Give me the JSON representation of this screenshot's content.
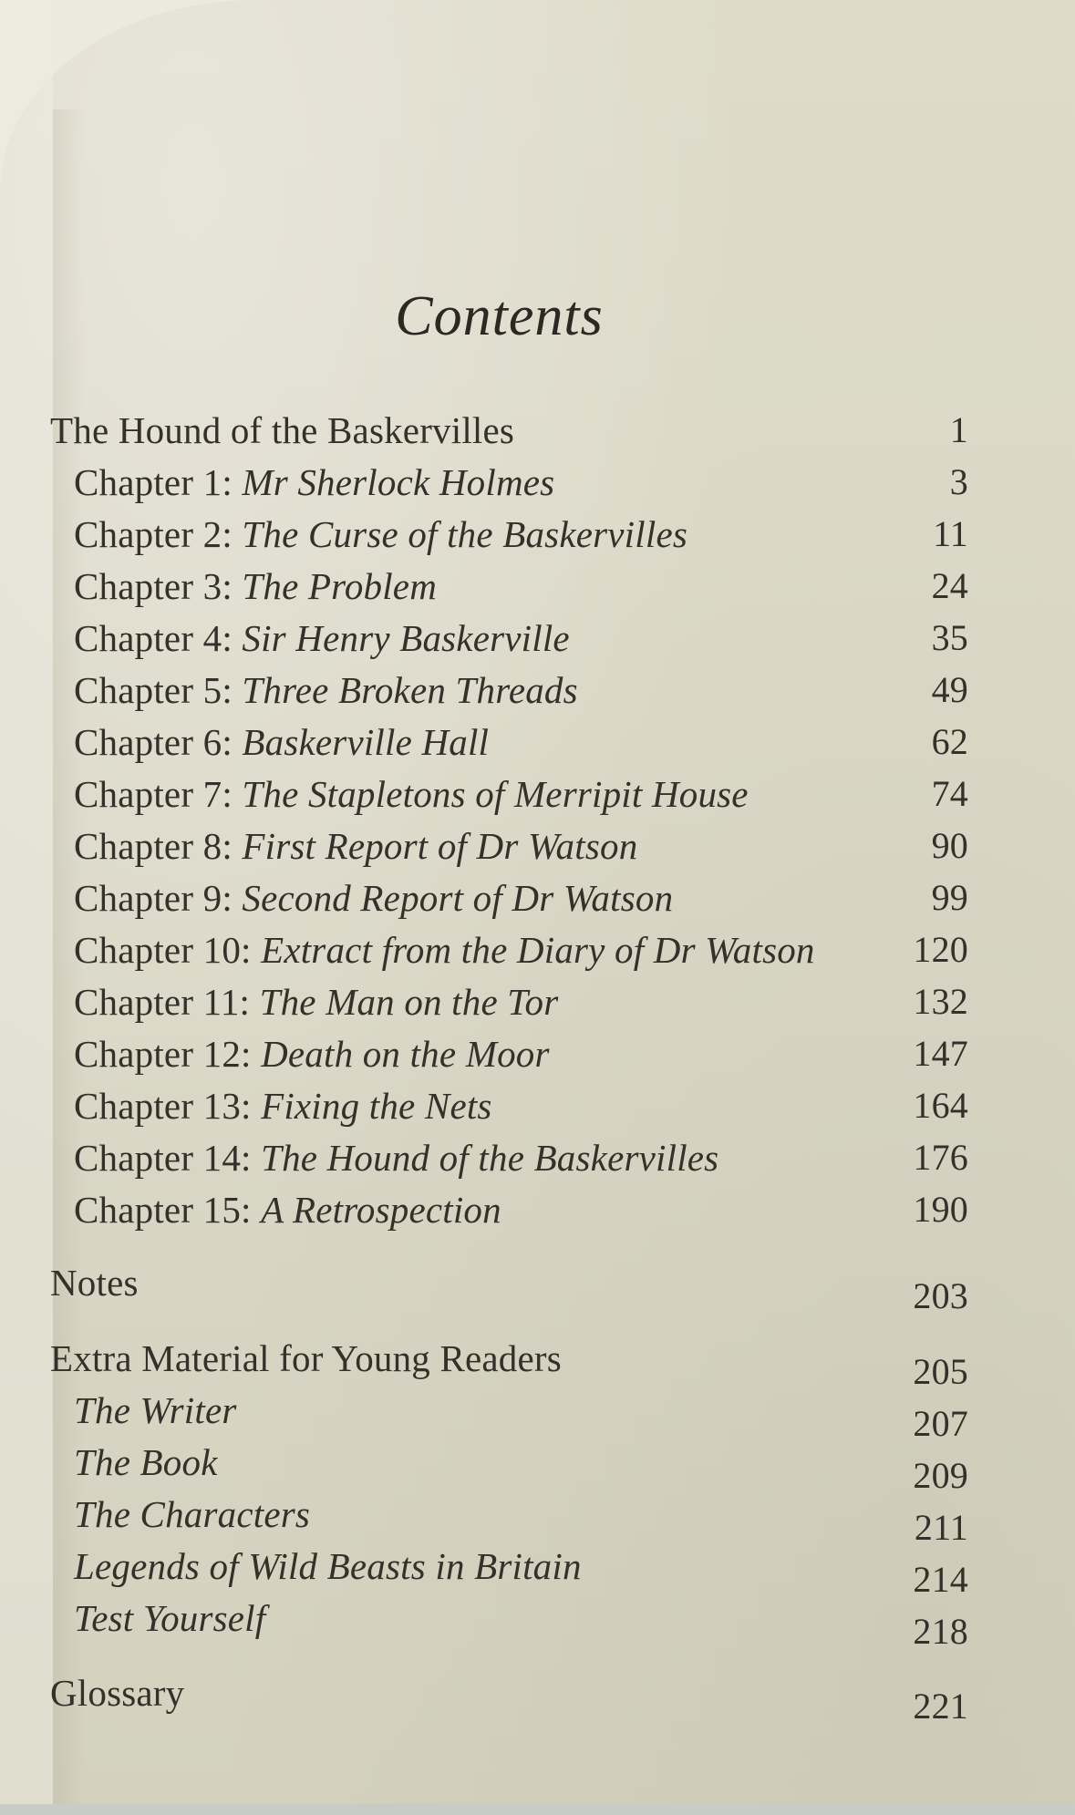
{
  "page": {
    "title": "Contents",
    "sections": [
      {
        "heading": {
          "label": "The Hound of the Baskervilles",
          "page": "1"
        },
        "entries": [
          {
            "prefix": "Chapter 1: ",
            "title": "Mr Sherlock Holmes",
            "page": "3"
          },
          {
            "prefix": "Chapter 2: ",
            "title": "The Curse of the Baskervilles",
            "page": "11"
          },
          {
            "prefix": "Chapter 3: ",
            "title": "The Problem",
            "page": "24"
          },
          {
            "prefix": "Chapter 4: ",
            "title": "Sir Henry Baskerville",
            "page": "35"
          },
          {
            "prefix": "Chapter 5: ",
            "title": "Three Broken Threads",
            "page": "49"
          },
          {
            "prefix": "Chapter 6: ",
            "title": "Baskerville Hall",
            "page": "62"
          },
          {
            "prefix": "Chapter 7: ",
            "title": "The Stapletons of Merripit House",
            "page": "74"
          },
          {
            "prefix": "Chapter 8: ",
            "title": "First Report of Dr Watson",
            "page": "90"
          },
          {
            "prefix": "Chapter 9: ",
            "title": "Second Report of Dr Watson",
            "page": "99"
          },
          {
            "prefix": "Chapter 10: ",
            "title": "Extract from the Diary of Dr Watson",
            "page": "120"
          },
          {
            "prefix": "Chapter 11: ",
            "title": "The Man on the Tor",
            "page": "132"
          },
          {
            "prefix": "Chapter 12: ",
            "title": "Death on the Moor",
            "page": "147"
          },
          {
            "prefix": "Chapter 13: ",
            "title": "Fixing the Nets",
            "page": "164"
          },
          {
            "prefix": "Chapter 14: ",
            "title": "The Hound of the Baskervilles",
            "page": "176"
          },
          {
            "prefix": "Chapter 15: ",
            "title": "A Retrospection",
            "page": "190"
          }
        ]
      },
      {
        "heading": {
          "label": "Notes",
          "page": "203"
        },
        "entries": []
      },
      {
        "heading": {
          "label": "Extra Material for Young Readers",
          "page": "205"
        },
        "entries": [
          {
            "prefix": "",
            "title": "The Writer",
            "page": "207"
          },
          {
            "prefix": "",
            "title": "The Book",
            "page": "209"
          },
          {
            "prefix": "",
            "title": "The Characters",
            "page": "211"
          },
          {
            "prefix": "",
            "title": "Legends of Wild Beasts in Britain",
            "page": "214"
          },
          {
            "prefix": "",
            "title": "Test Yourself",
            "page": "218"
          }
        ]
      },
      {
        "heading": {
          "label": "Glossary",
          "page": "221"
        },
        "entries": []
      }
    ]
  },
  "colors": {
    "paper": "#dad7c6",
    "paper_corner_light": "#eceadf",
    "ink": "#35302a",
    "bottom_strip": "#c9cbc6"
  }
}
